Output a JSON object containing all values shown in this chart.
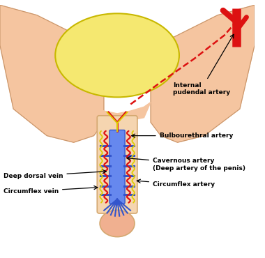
{
  "bg_color": "#ffffff",
  "labels": {
    "internal_pudendal": "Internal\npudendal artery",
    "bulbourethral": "Bulbourethral artery",
    "cavernous": "Cavernous artery\n(Deep artery of the penis)",
    "deep_dorsal": "Deep dorsal vein",
    "circumflex_vein": "Circumflex vein",
    "circumflex_artery": "Circumflex artery"
  },
  "colors": {
    "skin": "#f5c5a0",
    "skin_dark": "#c8956a",
    "testis": "#f5e870",
    "testis_outline": "#c8b800",
    "artery": "#dd1111",
    "vein": "#2244cc",
    "corpus": "#f5d5b0",
    "corpus_outline": "#d4a870",
    "glans": "#f0b090",
    "blue_vessel": "#3355cc",
    "blue_light": "#6688ee",
    "yellow_nerve": "#ddcc00"
  }
}
